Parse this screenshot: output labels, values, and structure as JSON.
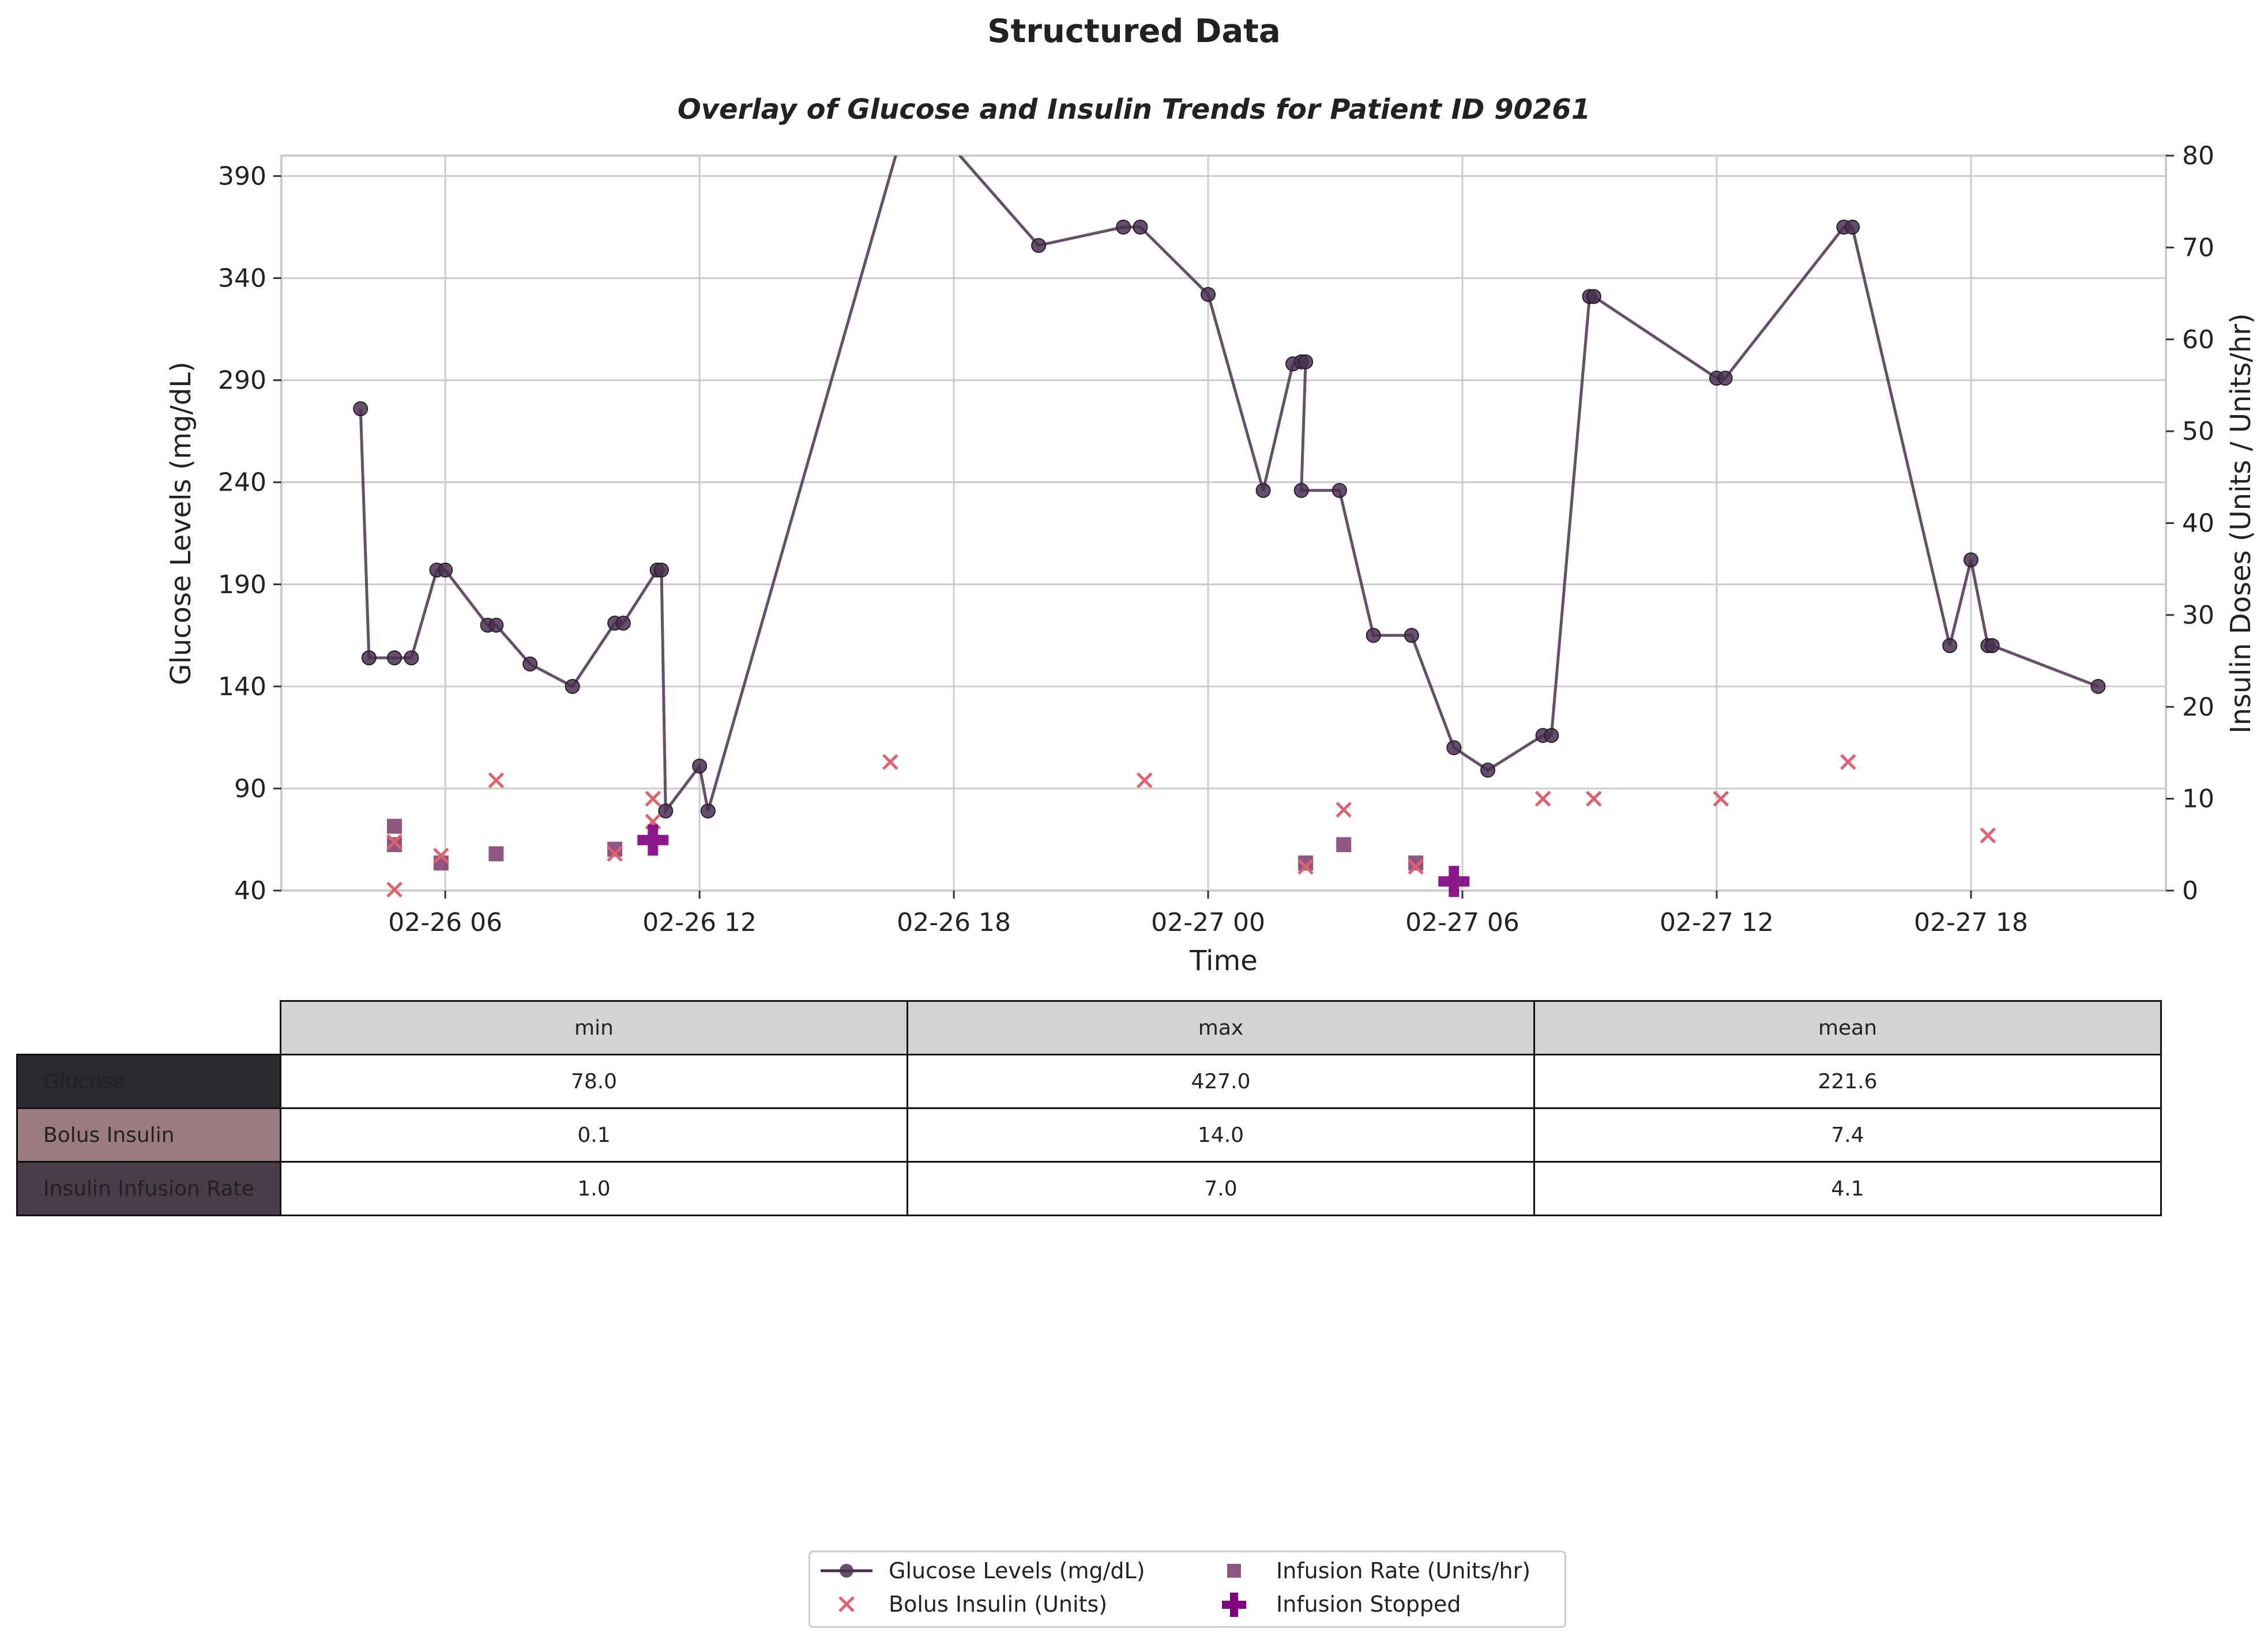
{
  "figure": {
    "suptitle": "Structured Data"
  },
  "chart_data": {
    "type": "line",
    "title": "Overlay of Glucose and Insulin Trends for Patient ID 90261",
    "xlabel": "Time",
    "ylabel_left": "Glucose Levels (mg/dL)",
    "ylabel_right": "Insulin Doses (Units / Units/hr)",
    "xlim": [
      "02-26 02:08",
      "02-27 22:36"
    ],
    "ylim_left": [
      40,
      400
    ],
    "ylim_right": [
      0,
      80
    ],
    "x_ticks": [
      {
        "t": "02-26 06:00",
        "label": "02-26 06"
      },
      {
        "t": "02-26 12:00",
        "label": "02-26 12"
      },
      {
        "t": "02-26 18:00",
        "label": "02-26 18"
      },
      {
        "t": "02-27 00:00",
        "label": "02-27 00"
      },
      {
        "t": "02-27 06:00",
        "label": "02-27 06"
      },
      {
        "t": "02-27 12:00",
        "label": "02-27 12"
      },
      {
        "t": "02-27 18:00",
        "label": "02-27 18"
      }
    ],
    "y_ticks_left": [
      40,
      90,
      140,
      190,
      240,
      290,
      340,
      390
    ],
    "y_ticks_right": [
      0,
      10,
      20,
      30,
      40,
      50,
      60,
      70,
      80
    ],
    "grid": true,
    "legend_position": "bottom-center",
    "series": [
      {
        "name": "Glucose Levels (mg/dL)",
        "kind": "line-marker",
        "axis": "left",
        "color": "#4a3050",
        "points": [
          {
            "t": "02-26 04:00",
            "y": 276
          },
          {
            "t": "02-26 04:12",
            "y": 154
          },
          {
            "t": "02-26 04:48",
            "y": 154
          },
          {
            "t": "02-26 05:12",
            "y": 154
          },
          {
            "t": "02-26 05:48",
            "y": 197
          },
          {
            "t": "02-26 06:00",
            "y": 197
          },
          {
            "t": "02-26 07:00",
            "y": 170
          },
          {
            "t": "02-26 07:12",
            "y": 170
          },
          {
            "t": "02-26 08:00",
            "y": 151
          },
          {
            "t": "02-26 09:00",
            "y": 140
          },
          {
            "t": "02-26 10:00",
            "y": 171
          },
          {
            "t": "02-26 10:12",
            "y": 171
          },
          {
            "t": "02-26 11:00",
            "y": 197
          },
          {
            "t": "02-26 11:06",
            "y": 197
          },
          {
            "t": "02-26 11:12",
            "y": 79
          },
          {
            "t": "02-26 12:00",
            "y": 101
          },
          {
            "t": "02-26 12:12",
            "y": 79
          },
          {
            "t": "02-26 17:00",
            "y": 427
          },
          {
            "t": "02-26 20:00",
            "y": 356
          },
          {
            "t": "02-26 22:00",
            "y": 365
          },
          {
            "t": "02-26 22:24",
            "y": 365
          },
          {
            "t": "02-27 00:00",
            "y": 332
          },
          {
            "t": "02-27 01:18",
            "y": 236
          },
          {
            "t": "02-27 02:00",
            "y": 298
          },
          {
            "t": "02-27 02:12",
            "y": 299
          },
          {
            "t": "02-27 02:18",
            "y": 299
          },
          {
            "t": "02-27 02:12",
            "y": 236
          },
          {
            "t": "02-27 03:06",
            "y": 236
          },
          {
            "t": "02-27 03:54",
            "y": 165
          },
          {
            "t": "02-27 04:48",
            "y": 165
          },
          {
            "t": "02-27 05:48",
            "y": 110
          },
          {
            "t": "02-27 06:36",
            "y": 99
          },
          {
            "t": "02-27 07:54",
            "y": 116
          },
          {
            "t": "02-27 08:06",
            "y": 116
          },
          {
            "t": "02-27 09:00",
            "y": 331
          },
          {
            "t": "02-27 09:06",
            "y": 331
          },
          {
            "t": "02-27 12:00",
            "y": 291
          },
          {
            "t": "02-27 12:12",
            "y": 291
          },
          {
            "t": "02-27 15:00",
            "y": 365
          },
          {
            "t": "02-27 15:12",
            "y": 365
          },
          {
            "t": "02-27 17:30",
            "y": 160
          },
          {
            "t": "02-27 18:00",
            "y": 202
          },
          {
            "t": "02-27 18:24",
            "y": 160
          },
          {
            "t": "02-27 18:30",
            "y": 160
          },
          {
            "t": "02-27 21:00",
            "y": 140
          }
        ]
      },
      {
        "name": "Bolus Insulin (Units)",
        "kind": "x-marker",
        "axis": "right",
        "color": "#e06070",
        "points": [
          {
            "t": "02-26 04:48",
            "y": 0.1
          },
          {
            "t": "02-26 04:48",
            "y": 5.3
          },
          {
            "t": "02-26 05:54",
            "y": 3.8
          },
          {
            "t": "02-26 07:12",
            "y": 12
          },
          {
            "t": "02-26 10:00",
            "y": 4.0
          },
          {
            "t": "02-26 10:54",
            "y": 10
          },
          {
            "t": "02-26 10:54",
            "y": 7.5
          },
          {
            "t": "02-26 16:30",
            "y": 14
          },
          {
            "t": "02-26 22:30",
            "y": 12
          },
          {
            "t": "02-27 02:18",
            "y": 2.6
          },
          {
            "t": "02-27 03:12",
            "y": 8.8
          },
          {
            "t": "02-27 04:54",
            "y": 2.6
          },
          {
            "t": "02-27 07:54",
            "y": 10
          },
          {
            "t": "02-27 09:06",
            "y": 10
          },
          {
            "t": "02-27 12:06",
            "y": 10
          },
          {
            "t": "02-27 15:06",
            "y": 14
          },
          {
            "t": "02-27 18:24",
            "y": 6
          }
        ]
      },
      {
        "name": "Infusion Rate (Units/hr)",
        "kind": "square-marker",
        "axis": "right",
        "color": "#7a3a6a",
        "points": [
          {
            "t": "02-26 04:48",
            "y": 7
          },
          {
            "t": "02-26 04:48",
            "y": 5
          },
          {
            "t": "02-26 05:54",
            "y": 3
          },
          {
            "t": "02-26 07:12",
            "y": 4
          },
          {
            "t": "02-26 10:00",
            "y": 4.5
          },
          {
            "t": "02-27 02:18",
            "y": 3
          },
          {
            "t": "02-27 03:12",
            "y": 5
          },
          {
            "t": "02-27 04:54",
            "y": 3
          }
        ]
      },
      {
        "name": "Infusion Stopped",
        "kind": "plus-marker",
        "axis": "right",
        "color": "#800080",
        "points": [
          {
            "t": "02-26 10:54",
            "y": 5.5
          },
          {
            "t": "02-27 05:48",
            "y": 1
          }
        ]
      }
    ]
  },
  "stats_table": {
    "columns": [
      "min",
      "max",
      "mean"
    ],
    "rows": [
      {
        "label": "Glucose",
        "label_bg": "#2b2830",
        "cells": [
          "78.0",
          "427.0",
          "221.6"
        ]
      },
      {
        "label": "Bolus Insulin",
        "label_bg": "#9a7c80",
        "cells": [
          "0.1",
          "14.0",
          "7.4"
        ]
      },
      {
        "label": "Insulin Infusion Rate",
        "label_bg": "#4a3c48",
        "cells": [
          "1.0",
          "7.0",
          "4.1"
        ]
      }
    ]
  }
}
